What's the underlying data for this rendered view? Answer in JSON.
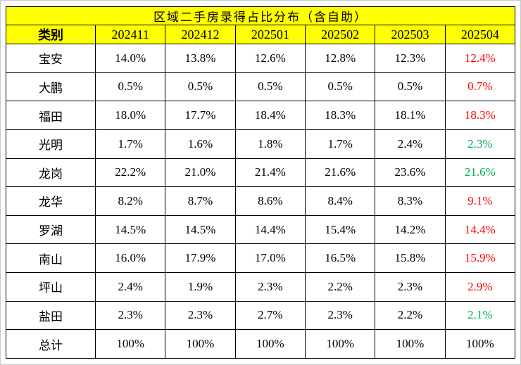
{
  "chart_data": {
    "type": "table",
    "title": "区域二手房录得占比分布（含自助）",
    "columns": [
      "类别",
      "202411",
      "202412",
      "202501",
      "202502",
      "202503",
      "202504"
    ],
    "rows": [
      {
        "label": "宝安",
        "values": [
          "14.0%",
          "13.8%",
          "12.6%",
          "12.8%",
          "12.3%",
          "12.4%"
        ],
        "trend": "up",
        "bold": false
      },
      {
        "label": "大鹏",
        "values": [
          "0.5%",
          "0.5%",
          "0.5%",
          "0.5%",
          "0.5%",
          "0.7%"
        ],
        "trend": "up",
        "bold": false
      },
      {
        "label": "福田",
        "values": [
          "18.0%",
          "17.7%",
          "18.4%",
          "18.3%",
          "18.1%",
          "18.3%"
        ],
        "trend": "up",
        "bold": false
      },
      {
        "label": "光明",
        "values": [
          "1.7%",
          "1.6%",
          "1.8%",
          "1.7%",
          "2.4%",
          "2.3%"
        ],
        "trend": "down",
        "bold": false
      },
      {
        "label": "龙岗",
        "values": [
          "22.2%",
          "21.0%",
          "21.4%",
          "21.6%",
          "23.6%",
          "21.6%"
        ],
        "trend": "down",
        "bold": false
      },
      {
        "label": "龙华",
        "values": [
          "8.2%",
          "8.7%",
          "8.6%",
          "8.4%",
          "8.3%",
          "9.1%"
        ],
        "trend": "up",
        "bold": false
      },
      {
        "label": "罗湖",
        "values": [
          "14.5%",
          "14.5%",
          "14.4%",
          "15.4%",
          "14.2%",
          "14.4%"
        ],
        "trend": "up",
        "bold": false
      },
      {
        "label": "南山",
        "values": [
          "16.0%",
          "17.9%",
          "17.0%",
          "16.5%",
          "15.8%",
          "15.9%"
        ],
        "trend": "up",
        "bold": false
      },
      {
        "label": "坪山",
        "values": [
          "2.4%",
          "1.9%",
          "2.3%",
          "2.2%",
          "2.3%",
          "2.9%"
        ],
        "trend": "up",
        "bold": false
      },
      {
        "label": "盐田",
        "values": [
          "2.3%",
          "2.3%",
          "2.7%",
          "2.3%",
          "2.2%",
          "2.1%"
        ],
        "trend": "down",
        "bold": false
      },
      {
        "label": "总计",
        "values": [
          "100%",
          "100%",
          "100%",
          "100%",
          "100%",
          "100%"
        ],
        "trend": null,
        "bold": true
      }
    ],
    "legend_note": "last column colored: up = red, down = green",
    "layout": {
      "header_background": "#ffff00",
      "grid": "on"
    }
  },
  "colors": {
    "title_text": "#ff0000",
    "header_bg": "#ffff00",
    "up": "#ff0000",
    "down": "#00b050",
    "border": "#000000"
  }
}
